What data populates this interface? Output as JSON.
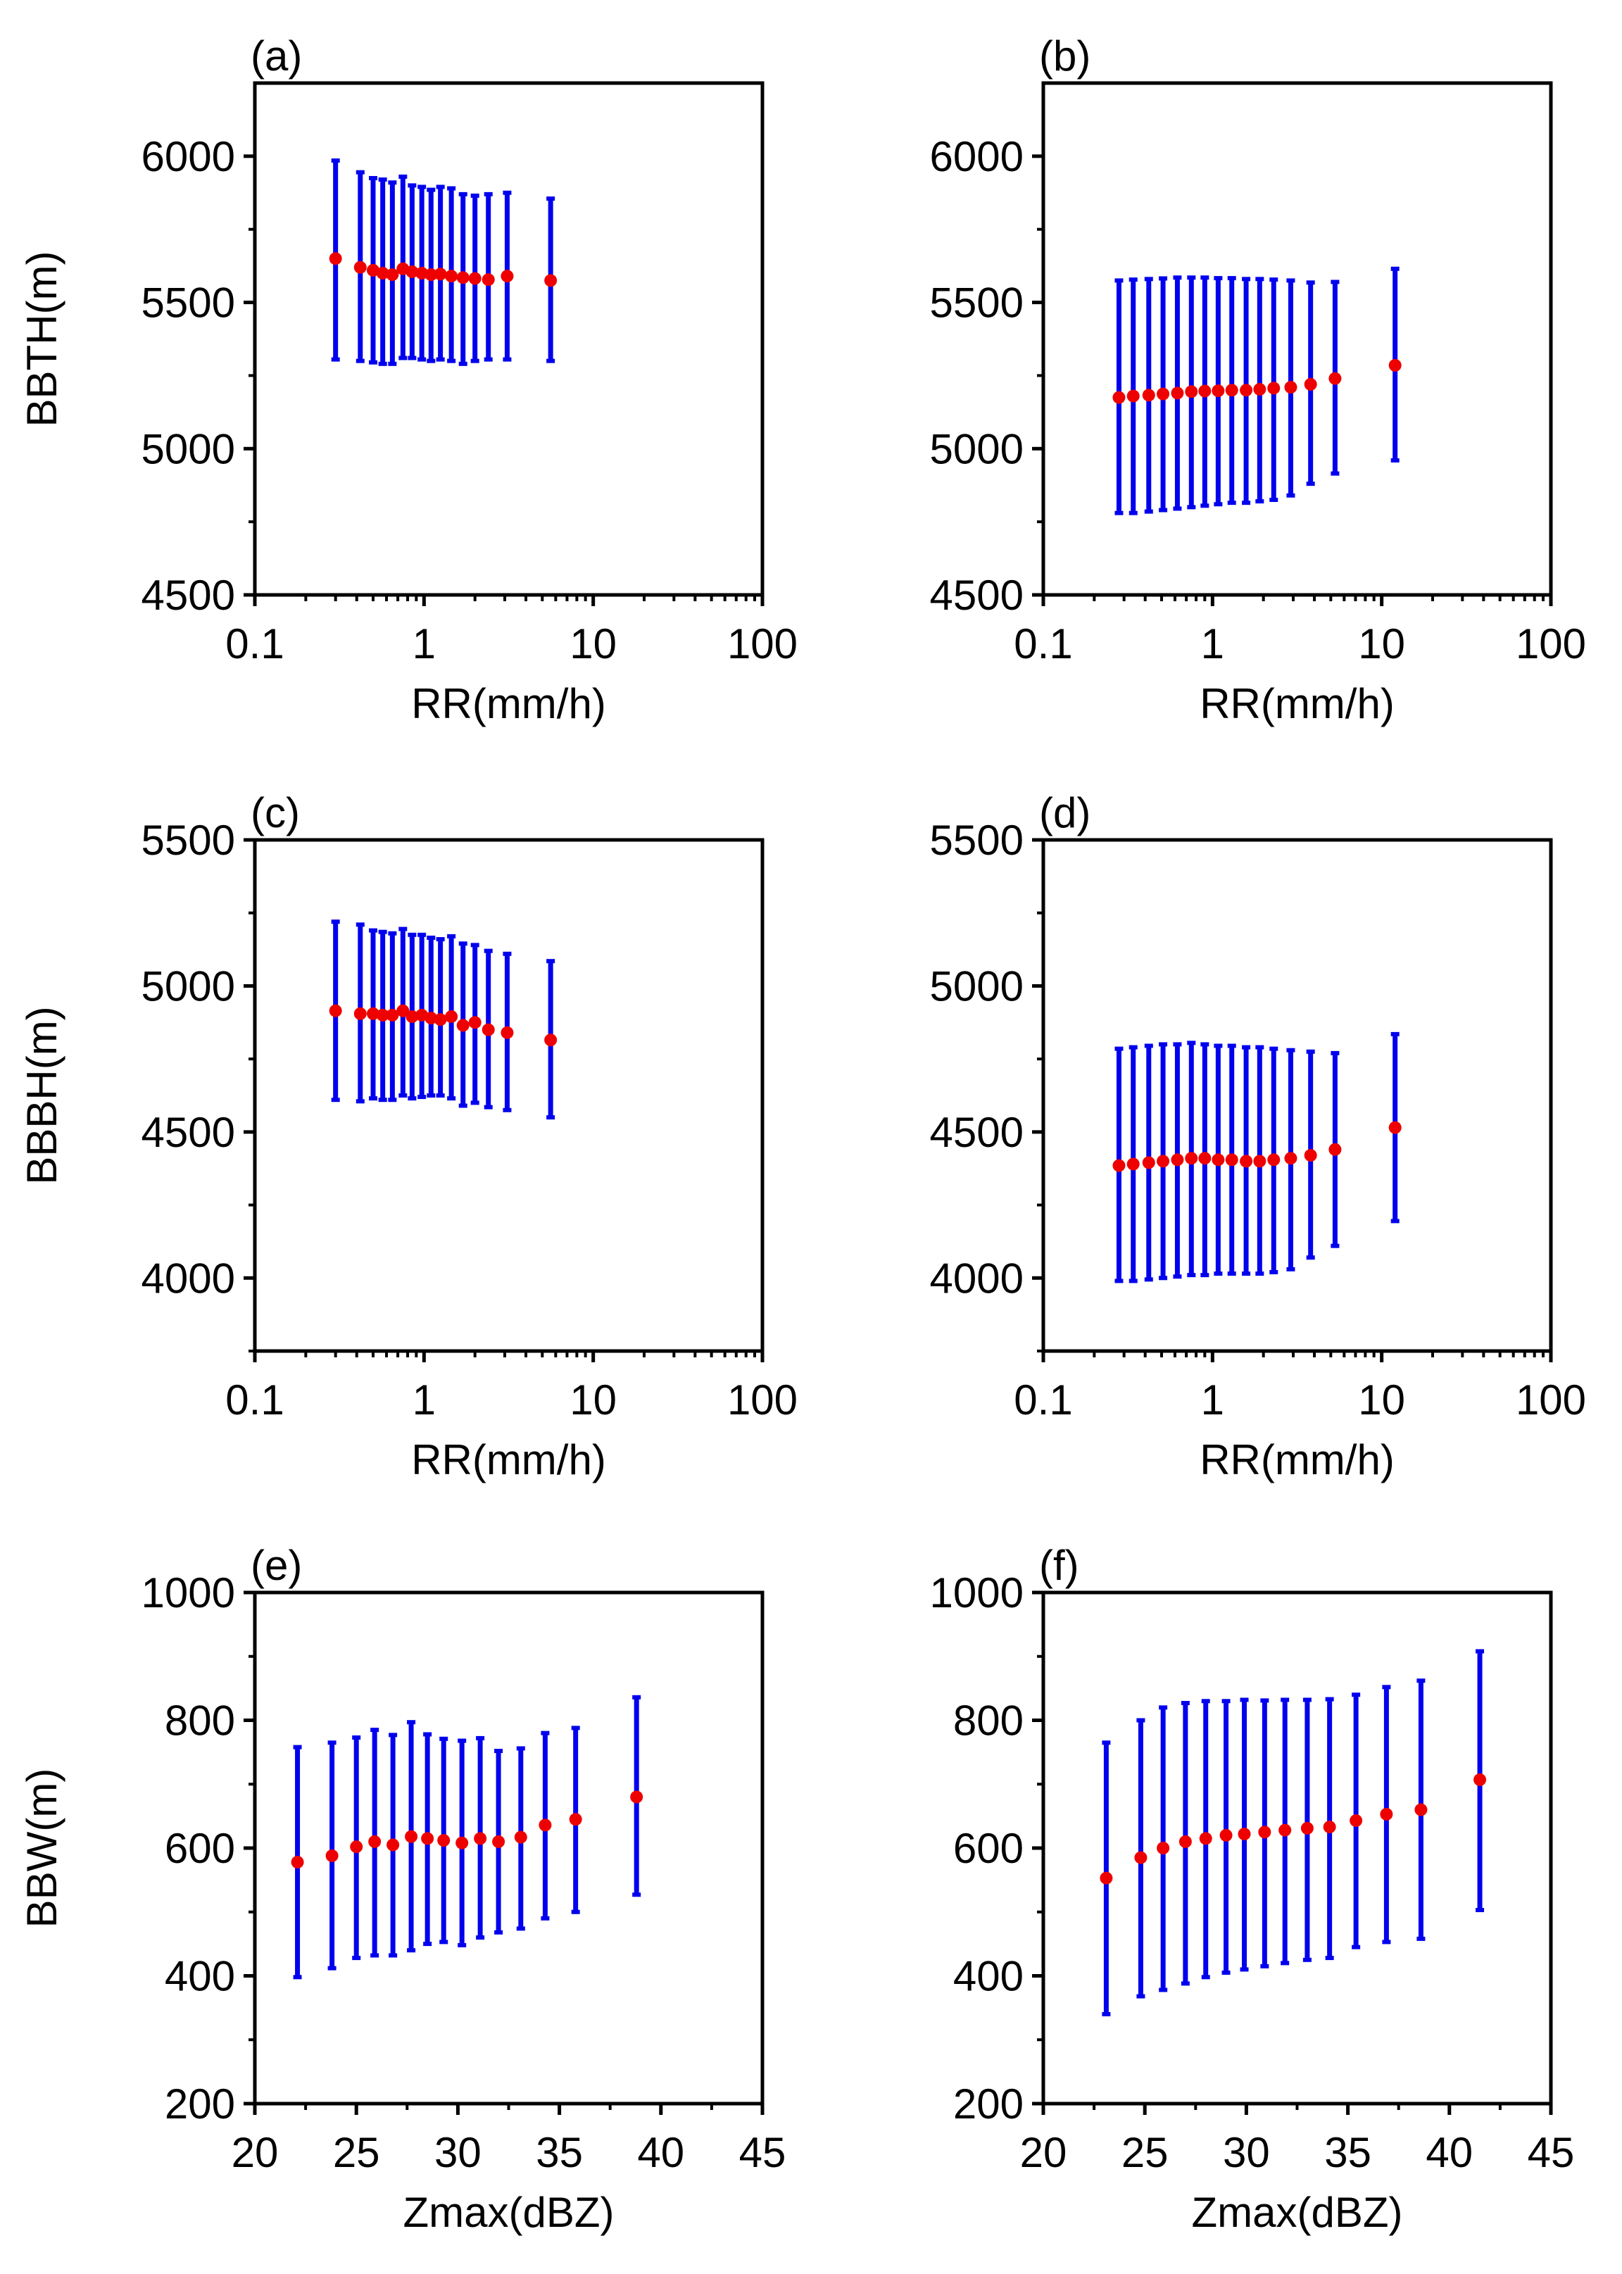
{
  "colors": {
    "errorbar": "#0000ee",
    "mean": "#ee0000",
    "axis": "#000000"
  },
  "chart_data": [
    {
      "panel": "(a)",
      "type": "scatter",
      "title": "(a)",
      "xlabel": "RR(mm/h)",
      "ylabel": "BBTH(m)",
      "xscale": "log",
      "xlim": [
        0.1,
        100
      ],
      "ylim": [
        4500,
        6250
      ],
      "xticks": [
        0.1,
        1,
        10,
        100
      ],
      "xtick_labels": [
        "0.1",
        "1",
        "10",
        "100"
      ],
      "yticks": [
        4500,
        5000,
        5500,
        6000
      ],
      "ytick_labels": [
        "4500",
        "5000",
        "5500",
        "6000"
      ],
      "x": [
        0.3,
        0.42,
        0.5,
        0.57,
        0.65,
        0.75,
        0.85,
        0.97,
        1.1,
        1.25,
        1.45,
        1.7,
        2.0,
        2.4,
        3.1,
        5.6
      ],
      "mean": [
        5650,
        5620,
        5610,
        5600,
        5595,
        5615,
        5605,
        5600,
        5595,
        5597,
        5590,
        5585,
        5582,
        5578,
        5590,
        5575
      ],
      "lower": [
        5305,
        5300,
        5295,
        5290,
        5290,
        5310,
        5310,
        5305,
        5300,
        5305,
        5300,
        5290,
        5300,
        5305,
        5305,
        5300
      ],
      "upper": [
        5985,
        5945,
        5925,
        5920,
        5910,
        5930,
        5900,
        5895,
        5885,
        5895,
        5890,
        5870,
        5865,
        5870,
        5875,
        5855
      ]
    },
    {
      "panel": "(b)",
      "type": "scatter",
      "title": "(b)",
      "xlabel": "RR(mm/h)",
      "ylabel": "",
      "xscale": "log",
      "xlim": [
        0.1,
        100
      ],
      "ylim": [
        4500,
        6250
      ],
      "xticks": [
        0.1,
        1,
        10,
        100
      ],
      "xtick_labels": [
        "0.1",
        "1",
        "10",
        "100"
      ],
      "yticks": [
        4500,
        5000,
        5500,
        6000
      ],
      "ytick_labels": [
        "4500",
        "5000",
        "5500",
        "6000"
      ],
      "x": [
        0.28,
        0.34,
        0.42,
        0.51,
        0.62,
        0.75,
        0.9,
        1.08,
        1.3,
        1.58,
        1.9,
        2.3,
        2.9,
        3.8,
        5.3,
        12.0
      ],
      "mean": [
        5175,
        5180,
        5183,
        5187,
        5190,
        5195,
        5197,
        5198,
        5200,
        5200,
        5203,
        5207,
        5210,
        5220,
        5240,
        5285
      ],
      "lower": [
        4780,
        4780,
        4785,
        4790,
        4795,
        4800,
        4805,
        4810,
        4815,
        4815,
        4820,
        4825,
        4840,
        4880,
        4915,
        4960
      ],
      "upper": [
        5575,
        5578,
        5580,
        5582,
        5585,
        5585,
        5585,
        5583,
        5583,
        5580,
        5580,
        5578,
        5575,
        5568,
        5570,
        5615
      ]
    },
    {
      "panel": "(c)",
      "type": "scatter",
      "title": "(c)",
      "xlabel": "RR(mm/h)",
      "ylabel": "BBBH(m)",
      "xscale": "log",
      "xlim": [
        0.1,
        100
      ],
      "ylim": [
        3750,
        5500
      ],
      "xticks": [
        0.1,
        1,
        10,
        100
      ],
      "xtick_labels": [
        "0.1",
        "1",
        "10",
        "100"
      ],
      "yticks": [
        4000,
        4500,
        5000,
        5500
      ],
      "ytick_labels": [
        "4000",
        "4500",
        "5000",
        "5500"
      ],
      "x": [
        0.3,
        0.42,
        0.5,
        0.57,
        0.65,
        0.75,
        0.85,
        0.97,
        1.1,
        1.25,
        1.45,
        1.7,
        2.0,
        2.4,
        3.1,
        5.6
      ],
      "mean": [
        4915,
        4905,
        4905,
        4900,
        4900,
        4915,
        4895,
        4900,
        4890,
        4885,
        4895,
        4865,
        4875,
        4850,
        4840,
        4815
      ],
      "lower": [
        4610,
        4605,
        4615,
        4610,
        4610,
        4625,
        4615,
        4620,
        4625,
        4625,
        4615,
        4590,
        4600,
        4585,
        4575,
        4550
      ],
      "upper": [
        5220,
        5210,
        5190,
        5185,
        5180,
        5195,
        5175,
        5175,
        5165,
        5160,
        5170,
        5145,
        5140,
        5120,
        5110,
        5085
      ]
    },
    {
      "panel": "(d)",
      "type": "scatter",
      "title": "(d)",
      "xlabel": "RR(mm/h)",
      "ylabel": "",
      "xscale": "log",
      "xlim": [
        0.1,
        100
      ],
      "ylim": [
        3750,
        5500
      ],
      "xticks": [
        0.1,
        1,
        10,
        100
      ],
      "xtick_labels": [
        "0.1",
        "1",
        "10",
        "100"
      ],
      "yticks": [
        4000,
        4500,
        5000,
        5500
      ],
      "ytick_labels": [
        "4000",
        "4500",
        "5000",
        "5500"
      ],
      "x": [
        0.28,
        0.34,
        0.42,
        0.51,
        0.62,
        0.75,
        0.9,
        1.08,
        1.3,
        1.58,
        1.9,
        2.3,
        2.9,
        3.8,
        5.3,
        12.0
      ],
      "mean": [
        4385,
        4390,
        4395,
        4400,
        4405,
        4410,
        4410,
        4405,
        4405,
        4400,
        4400,
        4405,
        4410,
        4420,
        4440,
        4515
      ],
      "lower": [
        3990,
        3990,
        3995,
        4000,
        4005,
        4010,
        4010,
        4015,
        4015,
        4015,
        4015,
        4020,
        4030,
        4070,
        4110,
        4195
      ],
      "upper": [
        4785,
        4790,
        4795,
        4800,
        4800,
        4805,
        4800,
        4795,
        4795,
        4790,
        4790,
        4785,
        4780,
        4775,
        4770,
        4835
      ]
    },
    {
      "panel": "(e)",
      "type": "scatter",
      "title": "(e)",
      "xlabel": "Zmax(dBZ)",
      "ylabel": "BBW(m)",
      "xscale": "linear",
      "xlim": [
        20,
        45
      ],
      "ylim": [
        200,
        1000
      ],
      "xticks": [
        20,
        25,
        30,
        35,
        40,
        45
      ],
      "xtick_labels": [
        "20",
        "25",
        "30",
        "35",
        "40",
        "45"
      ],
      "yticks": [
        200,
        400,
        600,
        800,
        1000
      ],
      "ytick_labels": [
        "200",
        "400",
        "600",
        "800",
        "1000"
      ],
      "x": [
        22.1,
        23.8,
        25.0,
        25.9,
        26.8,
        27.7,
        28.5,
        29.3,
        30.2,
        31.1,
        32.0,
        33.1,
        34.3,
        35.8,
        38.8
      ],
      "mean": [
        578,
        588,
        602,
        610,
        605,
        618,
        615,
        612,
        608,
        615,
        610,
        617,
        636,
        645,
        680
      ],
      "lower": [
        398,
        412,
        428,
        432,
        432,
        440,
        450,
        453,
        448,
        460,
        468,
        474,
        490,
        500,
        527
      ],
      "upper": [
        758,
        765,
        773,
        785,
        777,
        797,
        778,
        771,
        768,
        772,
        752,
        756,
        780,
        788,
        836
      ]
    },
    {
      "panel": "(f)",
      "type": "scatter",
      "title": "(f)",
      "xlabel": "Zmax(dBZ)",
      "ylabel": "",
      "xscale": "linear",
      "xlim": [
        20,
        45
      ],
      "ylim": [
        200,
        1000
      ],
      "xticks": [
        20,
        25,
        30,
        35,
        40,
        45
      ],
      "xtick_labels": [
        "20",
        "25",
        "30",
        "35",
        "40",
        "45"
      ],
      "yticks": [
        200,
        400,
        600,
        800,
        1000
      ],
      "ytick_labels": [
        "200",
        "400",
        "600",
        "800",
        "1000"
      ],
      "x": [
        23.1,
        24.8,
        25.9,
        27.0,
        28.0,
        29.0,
        29.9,
        30.9,
        31.9,
        33.0,
        34.1,
        35.4,
        36.9,
        38.6,
        41.5
      ],
      "mean": [
        553,
        585,
        600,
        610,
        615,
        620,
        622,
        625,
        628,
        631,
        633,
        643,
        653,
        660,
        707
      ],
      "lower": [
        340,
        368,
        378,
        388,
        398,
        405,
        410,
        415,
        420,
        425,
        428,
        445,
        453,
        458,
        503
      ],
      "upper": [
        765,
        800,
        820,
        827,
        830,
        830,
        832,
        831,
        832,
        832,
        833,
        840,
        852,
        862,
        908
      ]
    }
  ]
}
